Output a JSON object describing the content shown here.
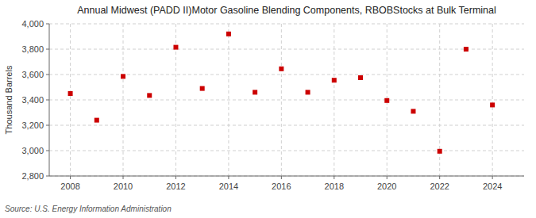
{
  "chart_data": {
    "type": "scatter",
    "title": "Annual Midwest (PADD II)Motor Gasoline Blending Components, RBOBStocks at Bulk Terminal",
    "ylabel": "Thousand Barrels",
    "annotation": "Source: U.S. Energy Information Administration",
    "x": [
      2008,
      2009,
      2010,
      2011,
      2012,
      2013,
      2014,
      2015,
      2016,
      2017,
      2018,
      2019,
      2020,
      2021,
      2022,
      2023,
      2024
    ],
    "values": [
      3450,
      3240,
      3585,
      3435,
      3815,
      3490,
      3920,
      3460,
      3645,
      3460,
      3555,
      3575,
      3395,
      3310,
      2995,
      3800,
      3360
    ],
    "color": "#cc0000",
    "marker": "square",
    "xlim": [
      2007.2,
      2025.2
    ],
    "xticks": [
      2008,
      2010,
      2012,
      2014,
      2016,
      2018,
      2020,
      2022,
      2024
    ],
    "ylim": [
      2800,
      4000
    ],
    "yticks": [
      {
        "value": 2800,
        "label": "2,800"
      },
      {
        "value": 3000,
        "label": "3,000"
      },
      {
        "value": 3200,
        "label": "3,200"
      },
      {
        "value": 3400,
        "label": "3,400"
      },
      {
        "value": 3600,
        "label": "3,600"
      },
      {
        "value": 3800,
        "label": "3,800"
      },
      {
        "value": 4000,
        "label": "4,000"
      }
    ],
    "grid": true
  }
}
